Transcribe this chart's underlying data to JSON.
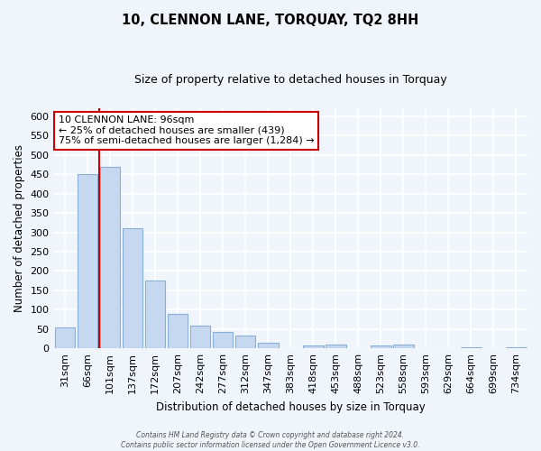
{
  "title": "10, CLENNON LANE, TORQUAY, TQ2 8HH",
  "subtitle": "Size of property relative to detached houses in Torquay",
  "xlabel": "Distribution of detached houses by size in Torquay",
  "ylabel": "Number of detached properties",
  "bar_labels": [
    "31sqm",
    "66sqm",
    "101sqm",
    "137sqm",
    "172sqm",
    "207sqm",
    "242sqm",
    "277sqm",
    "312sqm",
    "347sqm",
    "383sqm",
    "418sqm",
    "453sqm",
    "488sqm",
    "523sqm",
    "558sqm",
    "593sqm",
    "629sqm",
    "664sqm",
    "699sqm",
    "734sqm"
  ],
  "bar_values": [
    55,
    450,
    470,
    310,
    175,
    90,
    58,
    42,
    32,
    15,
    0,
    7,
    10,
    0,
    8,
    10,
    0,
    0,
    3,
    0,
    2
  ],
  "bar_color": "#c5d8f0",
  "bar_edge_color": "#8ab0d8",
  "vline_color": "#cc0000",
  "ylim": [
    0,
    620
  ],
  "yticks": [
    0,
    50,
    100,
    150,
    200,
    250,
    300,
    350,
    400,
    450,
    500,
    550,
    600
  ],
  "annotation_line1": "10 CLENNON LANE: 96sqm",
  "annotation_line2": "← 25% of detached houses are smaller (439)",
  "annotation_line3": "75% of semi-detached houses are larger (1,284) →",
  "annotation_box_color": "#ffffff",
  "annotation_box_edge": "#cc0000",
  "bg_color": "#f0f4fb",
  "footer_line1": "Contains HM Land Registry data © Crown copyright and database right 2024.",
  "footer_line2": "Contains public sector information licensed under the Open Government Licence v3.0."
}
